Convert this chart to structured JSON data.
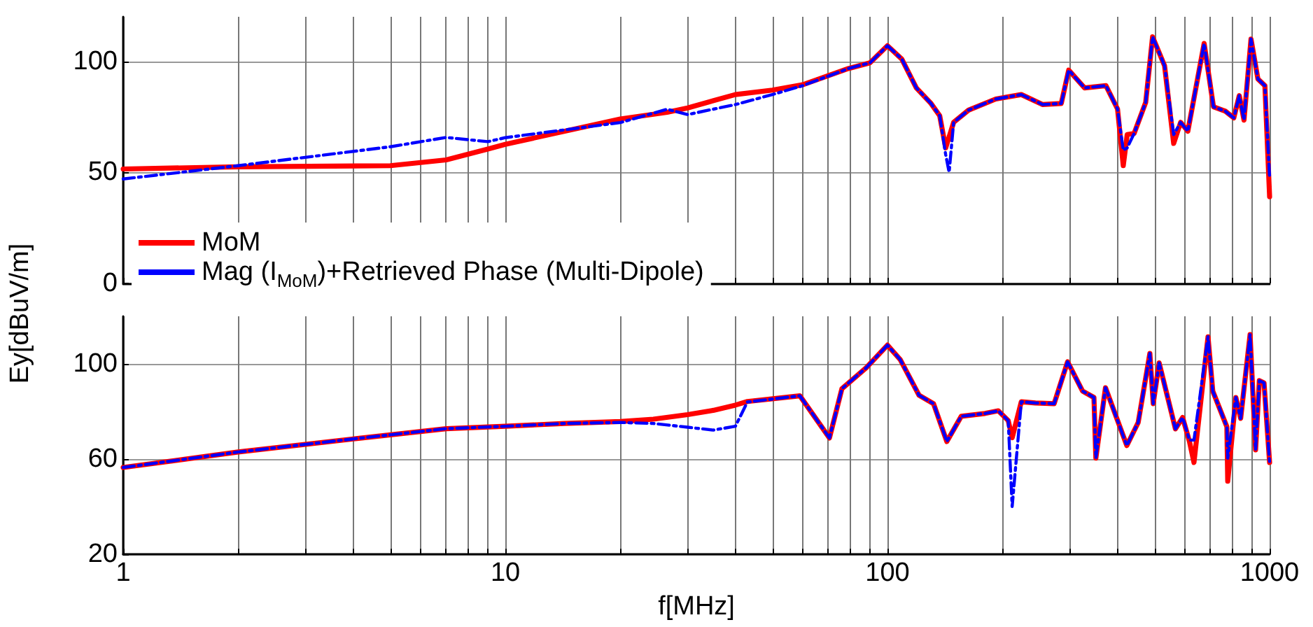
{
  "chart_data": [
    {
      "type": "line",
      "ylabel": "Ey[dBuV/m]",
      "log": "x",
      "xlim": [
        1,
        1000
      ],
      "xticks": [
        1,
        {
          "value": 2,
          "label": null
        },
        {
          "value": 3,
          "label": null
        },
        {
          "value": 4,
          "label": null
        },
        {
          "value": 5,
          "label": null
        },
        {
          "value": 6,
          "label": null
        },
        {
          "value": 7,
          "label": null
        },
        {
          "value": 8,
          "label": null
        },
        {
          "value": 9,
          "label": null
        },
        10,
        {
          "value": 20,
          "label": null
        },
        {
          "value": 30,
          "label": null
        },
        {
          "value": 40,
          "label": null
        },
        {
          "value": 50,
          "label": null
        },
        {
          "value": 60,
          "label": null
        },
        {
          "value": 70,
          "label": null
        },
        {
          "value": 80,
          "label": null
        },
        {
          "value": 90,
          "label": null
        },
        100,
        {
          "value": 200,
          "label": null
        },
        {
          "value": 300,
          "label": null
        },
        {
          "value": 400,
          "label": null
        },
        {
          "value": 500,
          "label": null
        },
        {
          "value": 600,
          "label": null
        },
        {
          "value": 700,
          "label": null
        },
        {
          "value": 800,
          "label": null
        },
        {
          "value": 900,
          "label": null
        },
        1000
      ],
      "ylim": [
        0,
        120
      ],
      "yticks": [
        0,
        50,
        100
      ],
      "grid": true,
      "legend": "bottom left",
      "tick_labels": "y",
      "x": [
        1,
        2,
        5,
        7,
        9,
        10,
        20,
        26.5,
        30,
        40,
        50,
        60,
        79,
        90,
        100,
        109,
        119,
        130,
        137,
        142,
        145,
        149,
        163,
        192,
        224,
        255,
        285,
        298,
        328,
        373,
        400,
        414,
        424,
        442,
        474,
        494,
        531,
        561,
        585,
        611,
        674,
        713,
        766,
        806,
        833,
        857,
        894,
        932,
        972,
        1000
      ],
      "series": [
        {
          "name": "MoM",
          "color": "#ff0000",
          "line_style": "solid",
          "values": [
            51.5,
            52.5,
            53,
            55.6,
            60.5,
            62.6,
            74,
            77,
            79,
            85,
            87,
            89.4,
            96.7,
            99.3,
            107,
            101,
            88,
            81,
            75.5,
            61,
            66,
            72.5,
            78,
            83,
            85,
            80.5,
            81,
            96,
            88,
            89,
            78.5,
            53,
            67,
            67.5,
            81.5,
            111,
            98,
            63,
            72.5,
            68.5,
            108,
            79.5,
            77.5,
            74.5,
            84.5,
            73.5,
            110,
            92,
            89,
            39
          ]
        },
        {
          "name": "Mag (I$_{MoM}$)+Retrieved Phase (Multi-Dipole)",
          "color": "#0000ff",
          "line_style": "dashed",
          "values": [
            47,
            53,
            61.5,
            65.7,
            63.8,
            65.6,
            72.4,
            78.4,
            76,
            80.5,
            85,
            89,
            96.7,
            99.3,
            107,
            101,
            88,
            81,
            75.5,
            58,
            50,
            72.5,
            78,
            83,
            85,
            80.5,
            81,
            96,
            88,
            89,
            78.5,
            60,
            61,
            67.5,
            81.5,
            111,
            98,
            67,
            72.5,
            68.5,
            108,
            79.5,
            77.5,
            74.5,
            84.5,
            73.5,
            110,
            92,
            89,
            48
          ]
        }
      ]
    },
    {
      "type": "line",
      "xlabel": "f[MHz]",
      "log": "x",
      "xlim": [
        1,
        1000
      ],
      "xticks": [
        1,
        {
          "value": 2,
          "label": null
        },
        {
          "value": 3,
          "label": null
        },
        {
          "value": 4,
          "label": null
        },
        {
          "value": 5,
          "label": null
        },
        {
          "value": 6,
          "label": null
        },
        {
          "value": 7,
          "label": null
        },
        {
          "value": 8,
          "label": null
        },
        {
          "value": 9,
          "label": null
        },
        10,
        {
          "value": 20,
          "label": null
        },
        {
          "value": 30,
          "label": null
        },
        {
          "value": 40,
          "label": null
        },
        {
          "value": 50,
          "label": null
        },
        {
          "value": 60,
          "label": null
        },
        {
          "value": 70,
          "label": null
        },
        {
          "value": 80,
          "label": null
        },
        {
          "value": 90,
          "label": null
        },
        100,
        {
          "value": 200,
          "label": null
        },
        {
          "value": 300,
          "label": null
        },
        {
          "value": 400,
          "label": null
        },
        {
          "value": 500,
          "label": null
        },
        {
          "value": 600,
          "label": null
        },
        {
          "value": 700,
          "label": null
        },
        {
          "value": 800,
          "label": null
        },
        {
          "value": 900,
          "label": null
        },
        1000
      ],
      "ylim": [
        20,
        120
      ],
      "yticks": [
        20,
        60,
        100
      ],
      "grid": true,
      "x": [
        1,
        2,
        4,
        7,
        10,
        14.3,
        20,
        24.4,
        30,
        35,
        40,
        43,
        59,
        70.5,
        76,
        88,
        100,
        108,
        121,
        132,
        143,
        156,
        180,
        195,
        207,
        212,
        224,
        244,
        273,
        296,
        324,
        347,
        351,
        372,
        423,
        453,
        486,
        496,
        514,
        567,
        592,
        617,
        634,
        690,
        710,
        773,
        777,
        816,
        840,
        889,
        919,
        940,
        967,
        1000
      ],
      "series": [
        {
          "color": "#ff0000",
          "line_style": "solid",
          "values": [
            56.5,
            63,
            68.5,
            72.8,
            73.8,
            75,
            75.8,
            76.8,
            78.7,
            80.5,
            82.7,
            84.2,
            86.6,
            68.9,
            89.6,
            98.4,
            107.9,
            101.8,
            86.8,
            83.3,
            67.4,
            78,
            79.2,
            80.3,
            76.2,
            69,
            84.1,
            83.6,
            83.3,
            100.9,
            88.6,
            85.9,
            60.4,
            90,
            65.7,
            75.4,
            104.4,
            83.3,
            100.4,
            72.7,
            77.5,
            67.4,
            58.6,
            111.4,
            88.6,
            73.6,
            50.7,
            85.9,
            77.1,
            112.3,
            63.9,
            93,
            92,
            58.6
          ]
        },
        {
          "color": "#0000ff",
          "line_style": "dashed",
          "values": [
            56.5,
            63,
            68.5,
            72.8,
            73.8,
            75,
            75.4,
            75,
            73.4,
            72.2,
            73.8,
            84,
            86.6,
            68.9,
            89.6,
            98.4,
            107.9,
            101.8,
            86.8,
            83.3,
            67.4,
            78,
            79.2,
            80.3,
            76.2,
            40.1,
            84.1,
            83.6,
            83.3,
            100.9,
            88.6,
            85.9,
            60.4,
            90,
            65.7,
            75.4,
            104.4,
            83.3,
            100.4,
            72.7,
            77.5,
            68,
            68,
            111.4,
            88.6,
            73.6,
            60.4,
            85.9,
            77.1,
            112.3,
            63.9,
            93,
            92,
            58.6
          ]
        }
      ]
    }
  ]
}
